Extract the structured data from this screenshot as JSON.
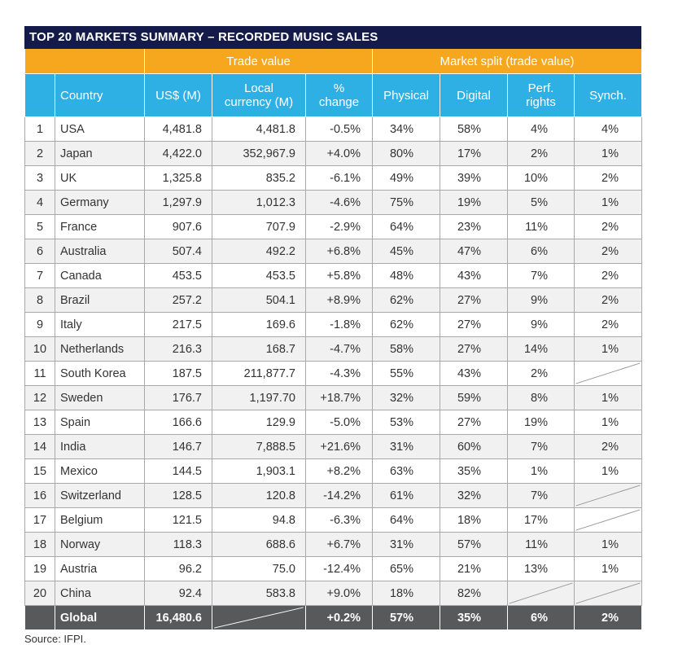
{
  "title": "TOP 20 MARKETS SUMMARY – RECORDED MUSIC SALES",
  "group_headers": {
    "trade_value": "Trade value",
    "market_split": "Market split (trade value)"
  },
  "columns": {
    "country": "Country",
    "usd": "US$ (M)",
    "local_line1": "Local",
    "local_line2": "currency (M)",
    "change_line1": "%",
    "change_line2": "change",
    "physical": "Physical",
    "digital": "Digital",
    "perf_line1": "Perf.",
    "perf_line2": "rights",
    "synch": "Synch."
  },
  "rows": [
    {
      "rank": "1",
      "country": "USA",
      "usd": "4,481.8",
      "local": "4,481.8",
      "change": "-0.5%",
      "physical": "34%",
      "digital": "58%",
      "perf": "4%",
      "synch": "4%"
    },
    {
      "rank": "2",
      "country": "Japan",
      "usd": "4,422.0",
      "local": "352,967.9",
      "change": "+4.0%",
      "physical": "80%",
      "digital": "17%",
      "perf": "2%",
      "synch": "1%"
    },
    {
      "rank": "3",
      "country": "UK",
      "usd": "1,325.8",
      "local": "835.2",
      "change": "-6.1%",
      "physical": "49%",
      "digital": "39%",
      "perf": "10%",
      "synch": "2%"
    },
    {
      "rank": "4",
      "country": "Germany",
      "usd": "1,297.9",
      "local": "1,012.3",
      "change": "-4.6%",
      "physical": "75%",
      "digital": "19%",
      "perf": "5%",
      "synch": "1%"
    },
    {
      "rank": "5",
      "country": "France",
      "usd": "907.6",
      "local": "707.9",
      "change": "-2.9%",
      "physical": "64%",
      "digital": "23%",
      "perf": "11%",
      "synch": "2%"
    },
    {
      "rank": "6",
      "country": "Australia",
      "usd": "507.4",
      "local": "492.2",
      "change": "+6.8%",
      "physical": "45%",
      "digital": "47%",
      "perf": "6%",
      "synch": "2%"
    },
    {
      "rank": "7",
      "country": "Canada",
      "usd": "453.5",
      "local": "453.5",
      "change": "+5.8%",
      "physical": "48%",
      "digital": "43%",
      "perf": "7%",
      "synch": "2%"
    },
    {
      "rank": "8",
      "country": "Brazil",
      "usd": "257.2",
      "local": "504.1",
      "change": "+8.9%",
      "physical": "62%",
      "digital": "27%",
      "perf": "9%",
      "synch": "2%"
    },
    {
      "rank": "9",
      "country": "Italy",
      "usd": "217.5",
      "local": "169.6",
      "change": "-1.8%",
      "physical": "62%",
      "digital": "27%",
      "perf": "9%",
      "synch": "2%"
    },
    {
      "rank": "10",
      "country": "Netherlands",
      "usd": "216.3",
      "local": "168.7",
      "change": "-4.7%",
      "physical": "58%",
      "digital": "27%",
      "perf": "14%",
      "synch": "1%"
    },
    {
      "rank": "11",
      "country": "South Korea",
      "usd": "187.5",
      "local": "211,877.7",
      "change": "-4.3%",
      "physical": "55%",
      "digital": "43%",
      "perf": "2%",
      "synch": null
    },
    {
      "rank": "12",
      "country": "Sweden",
      "usd": "176.7",
      "local": "1,197.70",
      "change": "+18.7%",
      "physical": "32%",
      "digital": "59%",
      "perf": "8%",
      "synch": "1%"
    },
    {
      "rank": "13",
      "country": "Spain",
      "usd": "166.6",
      "local": "129.9",
      "change": "-5.0%",
      "physical": "53%",
      "digital": "27%",
      "perf": "19%",
      "synch": "1%"
    },
    {
      "rank": "14",
      "country": "India",
      "usd": "146.7",
      "local": "7,888.5",
      "change": "+21.6%",
      "physical": "31%",
      "digital": "60%",
      "perf": "7%",
      "synch": "2%"
    },
    {
      "rank": "15",
      "country": "Mexico",
      "usd": "144.5",
      "local": "1,903.1",
      "change": "+8.2%",
      "physical": "63%",
      "digital": "35%",
      "perf": "1%",
      "synch": "1%"
    },
    {
      "rank": "16",
      "country": "Switzerland",
      "usd": "128.5",
      "local": "120.8",
      "change": "-14.2%",
      "physical": "61%",
      "digital": "32%",
      "perf": "7%",
      "synch": null
    },
    {
      "rank": "17",
      "country": "Belgium",
      "usd": "121.5",
      "local": "94.8",
      "change": "-6.3%",
      "physical": "64%",
      "digital": "18%",
      "perf": "17%",
      "synch": null
    },
    {
      "rank": "18",
      "country": "Norway",
      "usd": "118.3",
      "local": "688.6",
      "change": "+6.7%",
      "physical": "31%",
      "digital": "57%",
      "perf": "11%",
      "synch": "1%"
    },
    {
      "rank": "19",
      "country": "Austria",
      "usd": "96.2",
      "local": "75.0",
      "change": "-12.4%",
      "physical": "65%",
      "digital": "21%",
      "perf": "13%",
      "synch": "1%"
    },
    {
      "rank": "20",
      "country": "China",
      "usd": "92.4",
      "local": "583.8",
      "change": "+9.0%",
      "physical": "18%",
      "digital": "82%",
      "perf": null,
      "synch": null
    }
  ],
  "global": {
    "label": "Global",
    "usd": "16,480.6",
    "local": null,
    "change": "+0.2%",
    "physical": "57%",
    "digital": "35%",
    "perf": "6%",
    "synch": "2%"
  },
  "source": "Source: IFPI.",
  "colors": {
    "title_bg": "#141a4a",
    "group_bg": "#f6a71d",
    "header_bg": "#2fb0e5",
    "global_bg": "#58595b",
    "stripe": "#f1f1f1"
  }
}
